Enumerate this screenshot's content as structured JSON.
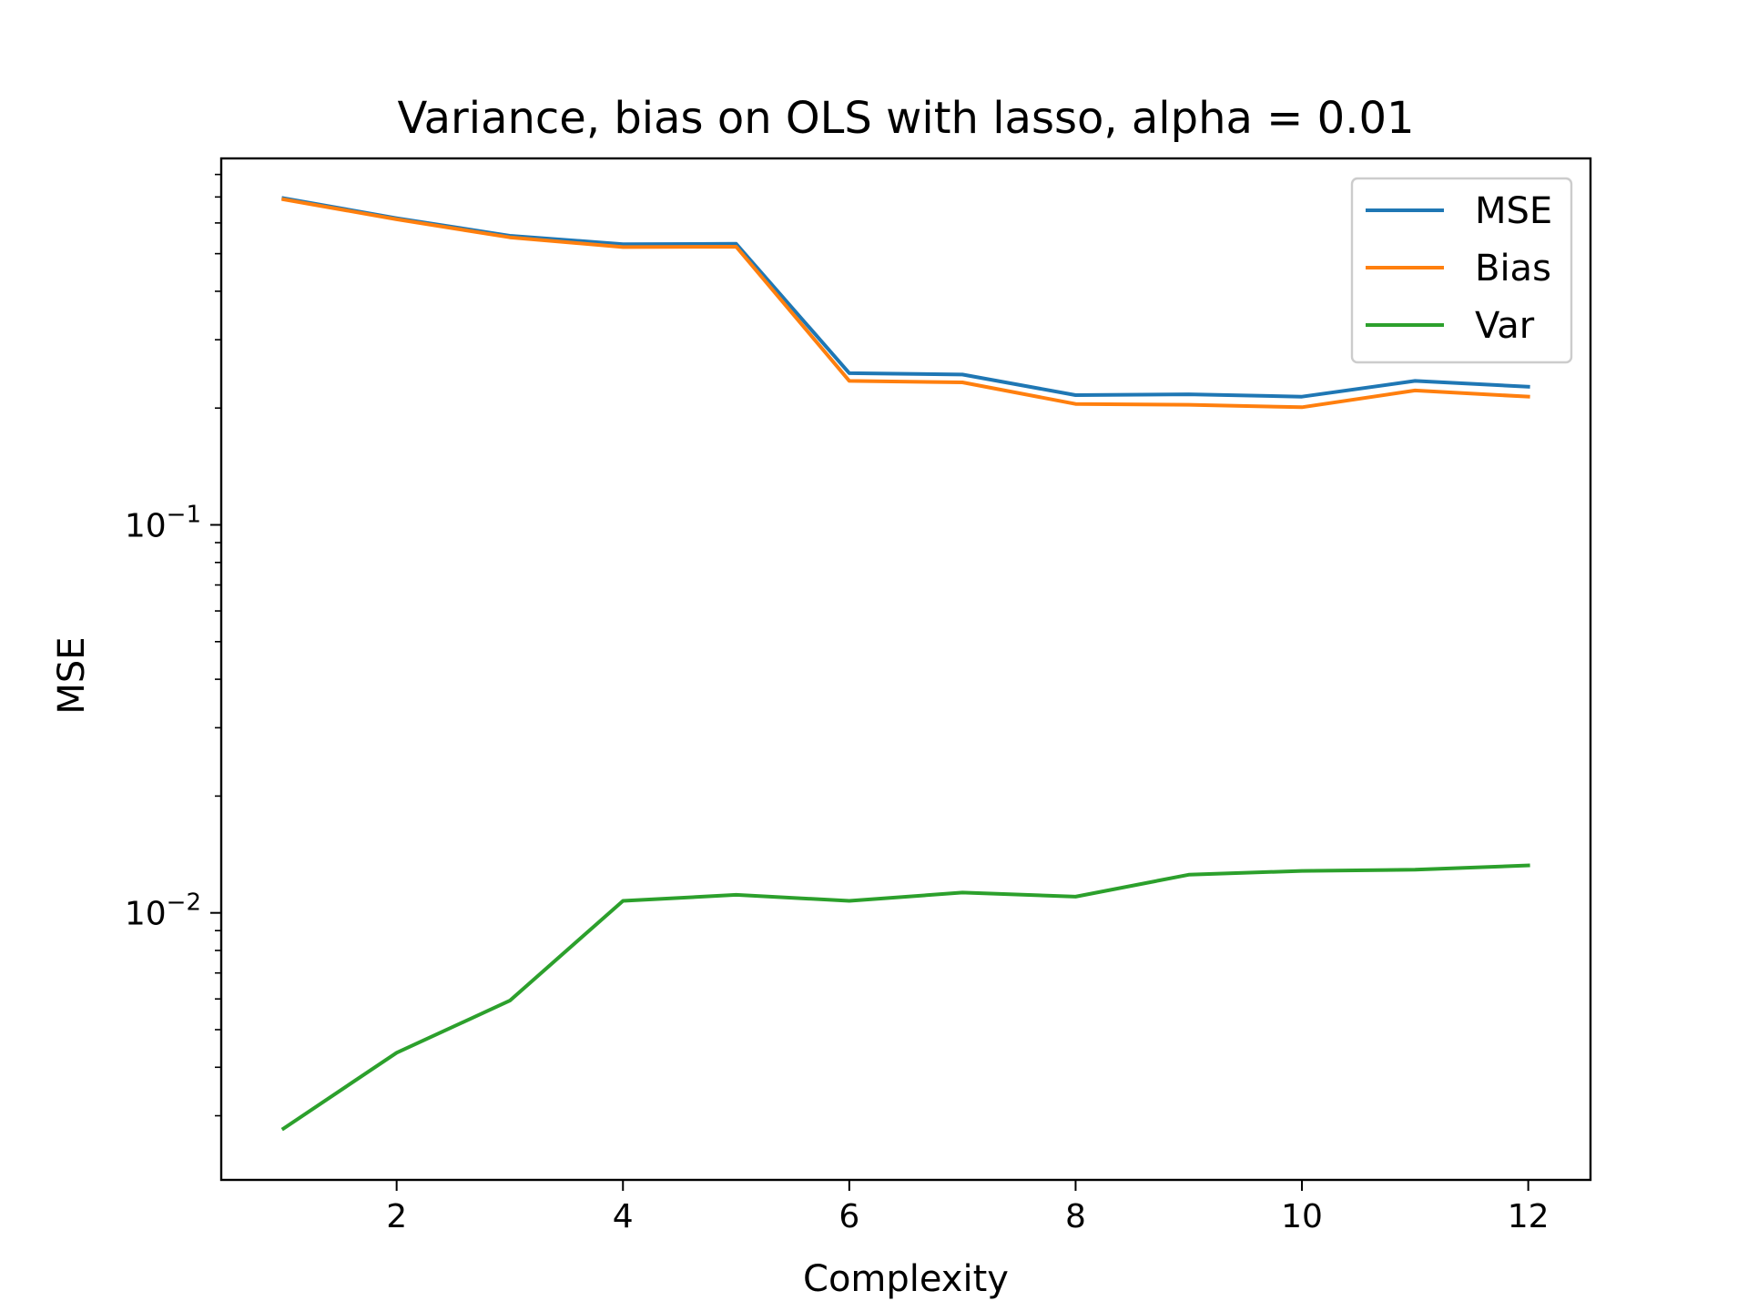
{
  "chart_data": {
    "type": "line",
    "title": "Variance, bias on OLS with lasso, alpha = 0.01",
    "xlabel": "Complexity",
    "ylabel": "MSE",
    "yscale": "log",
    "x": [
      1,
      2,
      3,
      4,
      5,
      6,
      7,
      8,
      9,
      10,
      11,
      12
    ],
    "xlim": [
      0.45,
      12.55
    ],
    "ylim": [
      0.00205,
      0.88
    ],
    "xticks": [
      2,
      4,
      6,
      8,
      10,
      12
    ],
    "xtick_labels": [
      "2",
      "4",
      "6",
      "8",
      "10",
      "12"
    ],
    "yticks_major": [
      0.1,
      0.01
    ],
    "ytick_base": "10",
    "ytick_exponents": [
      "−1",
      "−2"
    ],
    "grid": false,
    "legend_position": "top-right",
    "series": [
      {
        "name": "MSE",
        "color": "#1f77b4",
        "values": [
          0.695,
          0.617,
          0.556,
          0.529,
          0.53,
          0.246,
          0.244,
          0.216,
          0.217,
          0.214,
          0.235,
          0.227
        ]
      },
      {
        "name": "Bias",
        "color": "#ff7f0e",
        "values": [
          0.69,
          0.613,
          0.551,
          0.52,
          0.521,
          0.235,
          0.233,
          0.205,
          0.204,
          0.201,
          0.222,
          0.214
        ]
      },
      {
        "name": "Var",
        "color": "#2ca02c",
        "values": [
          0.00278,
          0.00436,
          0.00594,
          0.01074,
          0.01113,
          0.01074,
          0.01128,
          0.01101,
          0.01254,
          0.01283,
          0.01292,
          0.01325
        ]
      }
    ]
  }
}
